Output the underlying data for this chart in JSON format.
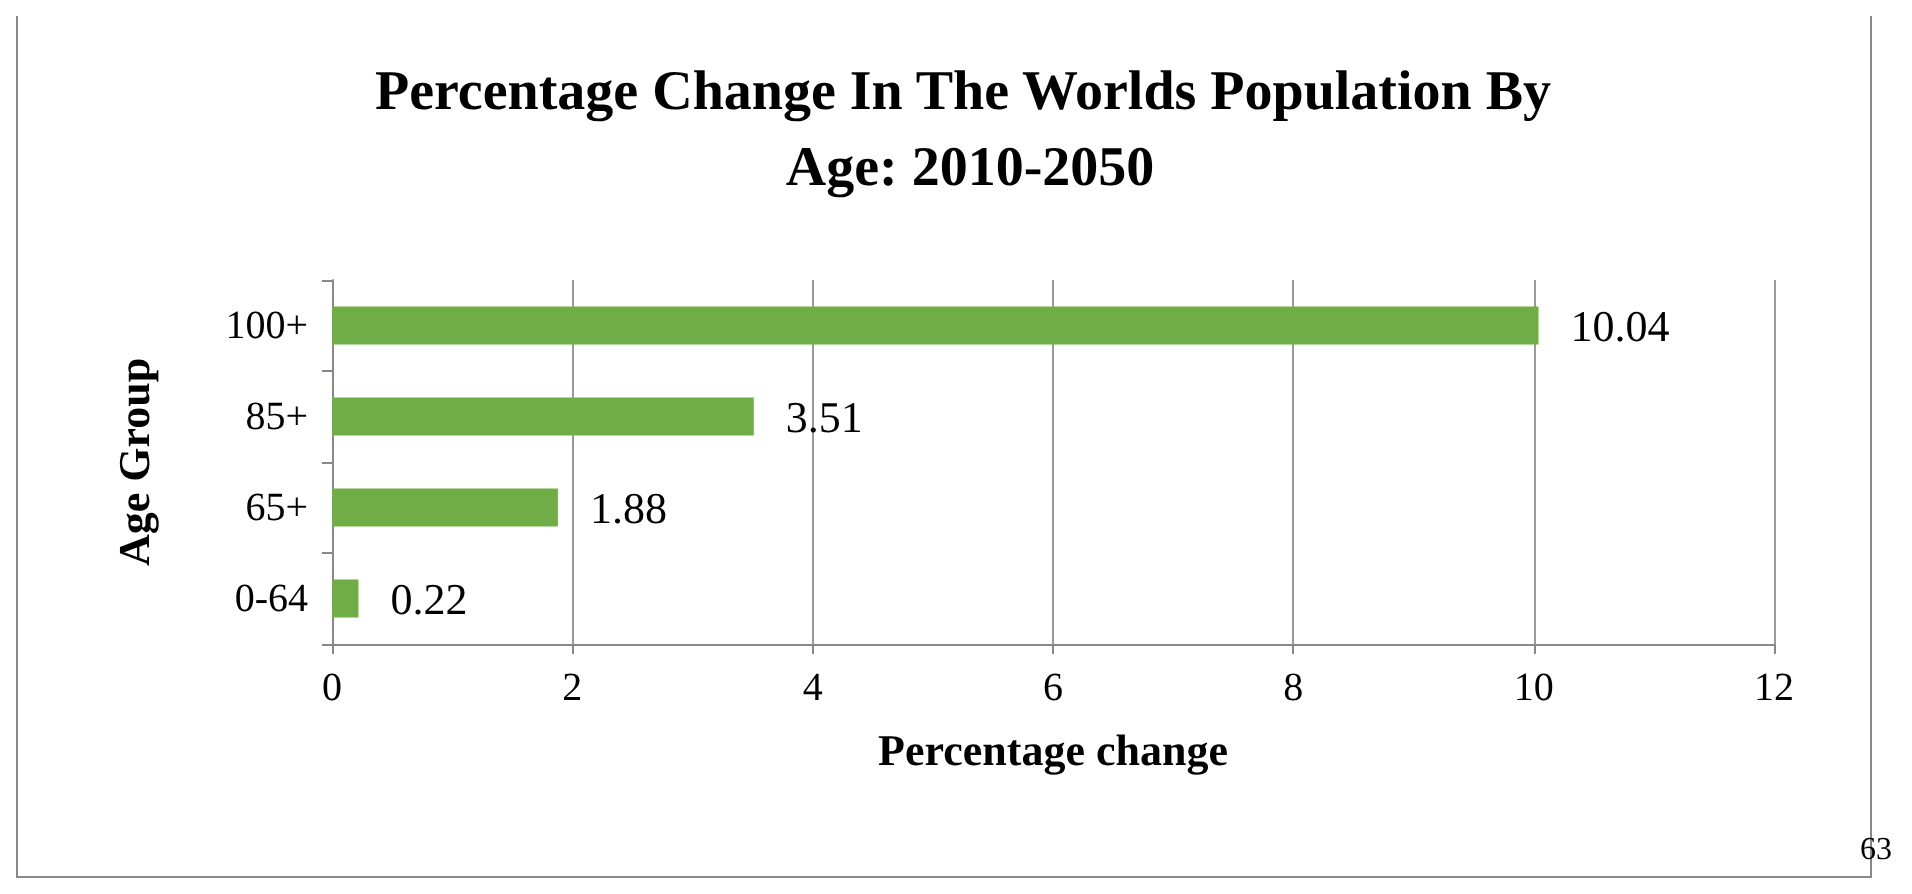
{
  "chart_data": {
    "type": "bar",
    "orientation": "horizontal",
    "title": "Percentage Change In The Worlds Population By Age: 2010-2050",
    "xlabel": "Percentage change",
    "ylabel": "Age Group",
    "categories": [
      "100+",
      "85+",
      "65+",
      "0-64"
    ],
    "values": [
      10.04,
      3.51,
      1.88,
      0.22
    ],
    "color": "#70ad47",
    "xlim": [
      0,
      12
    ],
    "xticks": [
      0,
      2,
      4,
      6,
      8,
      10,
      12
    ],
    "grid": "x",
    "data_labels": true,
    "annotations": [
      "63"
    ]
  }
}
